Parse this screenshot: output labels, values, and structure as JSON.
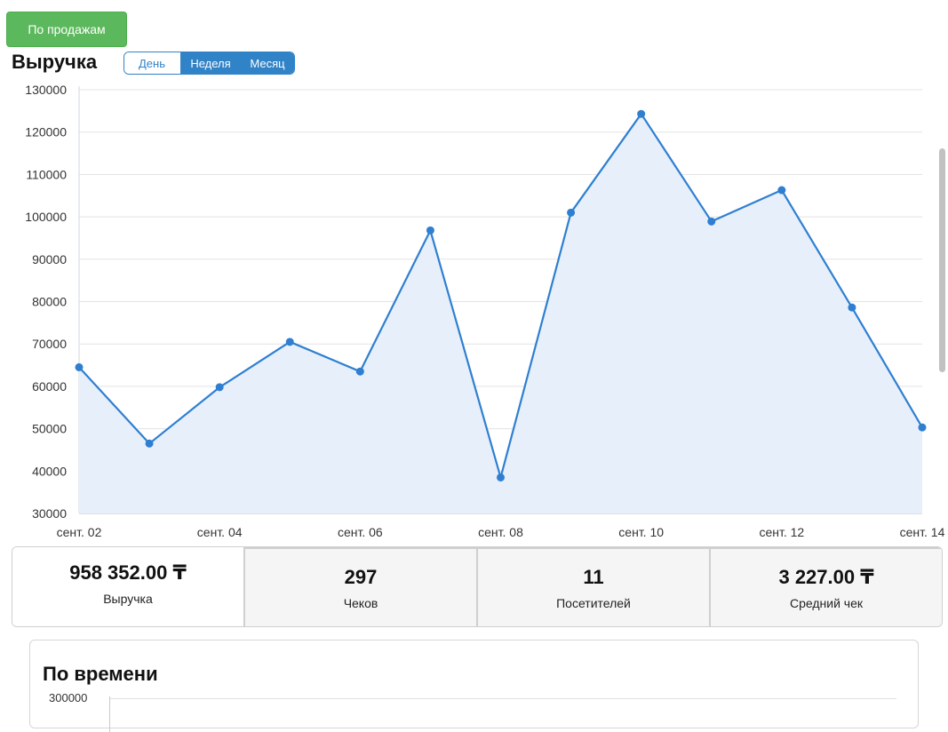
{
  "tabs": {
    "sales_label": "По продажам"
  },
  "revenue": {
    "title": "Выручка",
    "periods": [
      {
        "label": "День",
        "active": false
      },
      {
        "label": "Неделя",
        "active": true
      },
      {
        "label": "Месяц",
        "active": true
      }
    ]
  },
  "chart_data": {
    "type": "area",
    "x": [
      "сент. 02",
      "сент. 03",
      "сент. 04",
      "сент. 05",
      "сент. 06",
      "сент. 07",
      "сент. 08",
      "сент. 09",
      "сент. 10",
      "сент. 11",
      "сент. 12",
      "сент. 13",
      "сент. 14"
    ],
    "xticks": [
      "сент. 02",
      "сент. 04",
      "сент. 06",
      "сент. 08",
      "сент. 10",
      "сент. 12",
      "сент. 14"
    ],
    "values": [
      64500,
      46500,
      59800,
      70500,
      63500,
      96800,
      38500,
      101000,
      124300,
      98900,
      106300,
      78600,
      50300
    ],
    "ylim": [
      30000,
      130000
    ],
    "yticks": [
      30000,
      40000,
      50000,
      60000,
      70000,
      80000,
      90000,
      100000,
      110000,
      120000,
      130000
    ],
    "grid": true,
    "colors": {
      "line": "#2f7fd1",
      "fill": "#e7f0fa"
    }
  },
  "stats": [
    {
      "value": "958 352.00 ₸",
      "label": "Выручка"
    },
    {
      "value": "297",
      "label": "Чеков"
    },
    {
      "value": "11",
      "label": "Посетителей"
    },
    {
      "value": "3 227.00 ₸",
      "label": "Средний чек"
    }
  ],
  "time_panel": {
    "title": "По времени",
    "ytick_top": "300000"
  }
}
